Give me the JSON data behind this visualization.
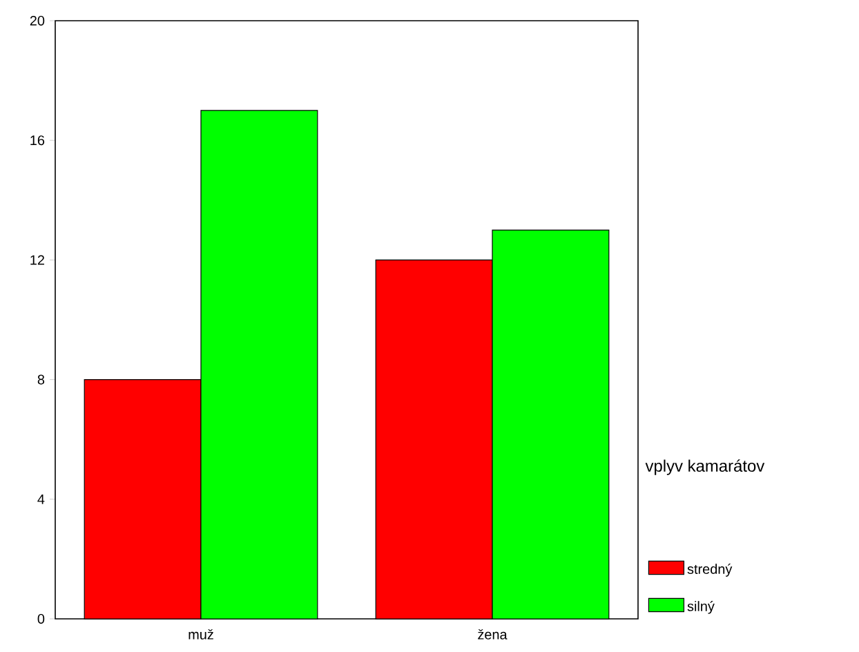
{
  "chart_data": {
    "type": "bar",
    "categories": [
      "muž",
      "žena"
    ],
    "series": [
      {
        "name": "stredný",
        "color": "#ff0000",
        "values": [
          8,
          12
        ]
      },
      {
        "name": "silný",
        "color": "#00ff00",
        "values": [
          17,
          13
        ]
      }
    ],
    "legend_title": "vplyv kamarátov",
    "legend": "right",
    "ylim": [
      0,
      20
    ],
    "yticks": [
      0,
      4,
      8,
      12,
      16,
      20
    ],
    "grid": false
  }
}
